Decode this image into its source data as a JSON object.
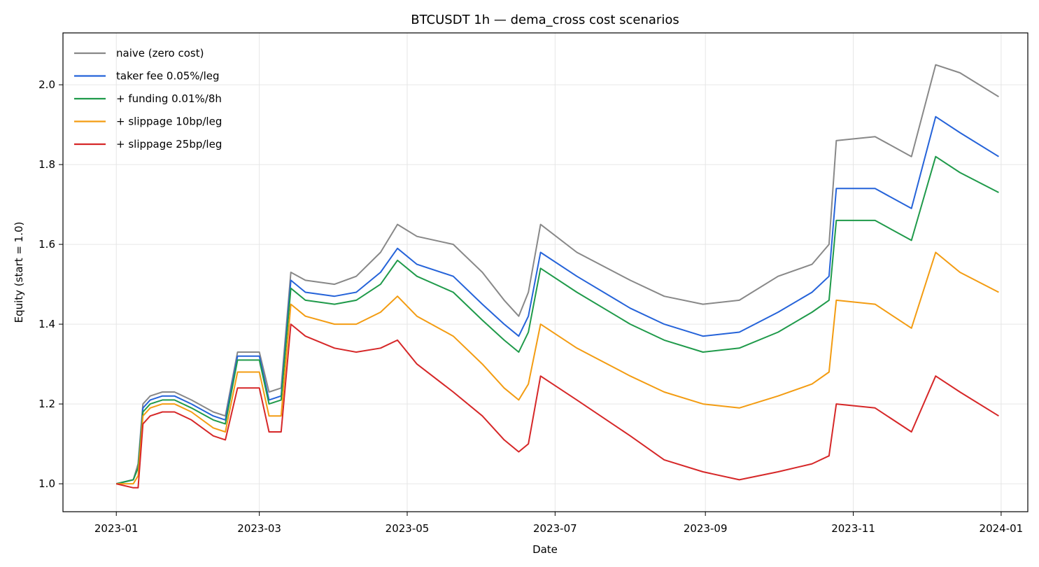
{
  "chart_data": {
    "type": "line",
    "title": "BTCUSDT 1h — dema_cross cost scenarios",
    "xlabel": "Date",
    "ylabel": "Equity (start = 1.0)",
    "x_ticks": [
      "2023-01",
      "2023-03",
      "2023-05",
      "2023-07",
      "2023-09",
      "2023-11",
      "2024-01"
    ],
    "y_ticks": [
      "1.0",
      "1.2",
      "1.4",
      "1.6",
      "1.8",
      "2.0"
    ],
    "xlim": [
      "2022-12-10",
      "2024-01-12"
    ],
    "ylim": [
      0.93,
      2.13
    ],
    "grid": true,
    "legend_position": "top-left",
    "x": [
      "2023-01-01",
      "2023-01-08",
      "2023-01-10",
      "2023-01-12",
      "2023-01-15",
      "2023-01-20",
      "2023-01-25",
      "2023-02-01",
      "2023-02-10",
      "2023-02-15",
      "2023-02-20",
      "2023-03-01",
      "2023-03-05",
      "2023-03-10",
      "2023-03-14",
      "2023-03-20",
      "2023-04-01",
      "2023-04-10",
      "2023-04-20",
      "2023-04-27",
      "2023-05-05",
      "2023-05-20",
      "2023-06-01",
      "2023-06-10",
      "2023-06-16",
      "2023-06-20",
      "2023-06-25",
      "2023-07-10",
      "2023-08-01",
      "2023-08-15",
      "2023-08-31",
      "2023-09-15",
      "2023-10-01",
      "2023-10-15",
      "2023-10-22",
      "2023-10-25",
      "2023-11-10",
      "2023-11-25",
      "2023-12-05",
      "2023-12-15",
      "2023-12-31"
    ],
    "series": [
      {
        "name": "naive (zero cost)",
        "color": "#888888",
        "values": [
          1.0,
          1.01,
          1.05,
          1.2,
          1.22,
          1.23,
          1.23,
          1.21,
          1.18,
          1.17,
          1.33,
          1.33,
          1.23,
          1.24,
          1.53,
          1.51,
          1.5,
          1.52,
          1.58,
          1.65,
          1.62,
          1.6,
          1.53,
          1.46,
          1.42,
          1.48,
          1.65,
          1.58,
          1.51,
          1.47,
          1.45,
          1.46,
          1.52,
          1.55,
          1.6,
          1.86,
          1.87,
          1.82,
          2.05,
          2.03,
          1.97
        ]
      },
      {
        "name": "taker fee 0.05%/leg",
        "color": "#2563d9",
        "values": [
          1.0,
          1.01,
          1.04,
          1.19,
          1.21,
          1.22,
          1.22,
          1.2,
          1.17,
          1.16,
          1.32,
          1.32,
          1.21,
          1.22,
          1.51,
          1.48,
          1.47,
          1.48,
          1.53,
          1.59,
          1.55,
          1.52,
          1.45,
          1.4,
          1.37,
          1.42,
          1.58,
          1.52,
          1.44,
          1.4,
          1.37,
          1.38,
          1.43,
          1.48,
          1.52,
          1.74,
          1.74,
          1.69,
          1.92,
          1.88,
          1.82
        ]
      },
      {
        "name": "+ funding 0.01%/8h",
        "color": "#1f9a4a",
        "values": [
          1.0,
          1.01,
          1.04,
          1.18,
          1.2,
          1.21,
          1.21,
          1.19,
          1.16,
          1.15,
          1.31,
          1.31,
          1.2,
          1.21,
          1.49,
          1.46,
          1.45,
          1.46,
          1.5,
          1.56,
          1.52,
          1.48,
          1.41,
          1.36,
          1.33,
          1.38,
          1.54,
          1.48,
          1.4,
          1.36,
          1.33,
          1.34,
          1.38,
          1.43,
          1.46,
          1.66,
          1.66,
          1.61,
          1.82,
          1.78,
          1.73
        ]
      },
      {
        "name": "+ slippage 10bp/leg",
        "color": "#f39c12",
        "values": [
          1.0,
          1.0,
          1.02,
          1.17,
          1.19,
          1.2,
          1.2,
          1.18,
          1.14,
          1.13,
          1.28,
          1.28,
          1.17,
          1.17,
          1.45,
          1.42,
          1.4,
          1.4,
          1.43,
          1.47,
          1.42,
          1.37,
          1.3,
          1.24,
          1.21,
          1.25,
          1.4,
          1.34,
          1.27,
          1.23,
          1.2,
          1.19,
          1.22,
          1.25,
          1.28,
          1.46,
          1.45,
          1.39,
          1.58,
          1.53,
          1.48
        ]
      },
      {
        "name": "+ slippage 25bp/leg",
        "color": "#d62728",
        "values": [
          1.0,
          0.99,
          0.99,
          1.15,
          1.17,
          1.18,
          1.18,
          1.16,
          1.12,
          1.11,
          1.24,
          1.24,
          1.13,
          1.13,
          1.4,
          1.37,
          1.34,
          1.33,
          1.34,
          1.36,
          1.3,
          1.23,
          1.17,
          1.11,
          1.08,
          1.1,
          1.27,
          1.21,
          1.12,
          1.06,
          1.03,
          1.01,
          1.03,
          1.05,
          1.07,
          1.2,
          1.19,
          1.13,
          1.27,
          1.23,
          1.17
        ]
      }
    ]
  }
}
